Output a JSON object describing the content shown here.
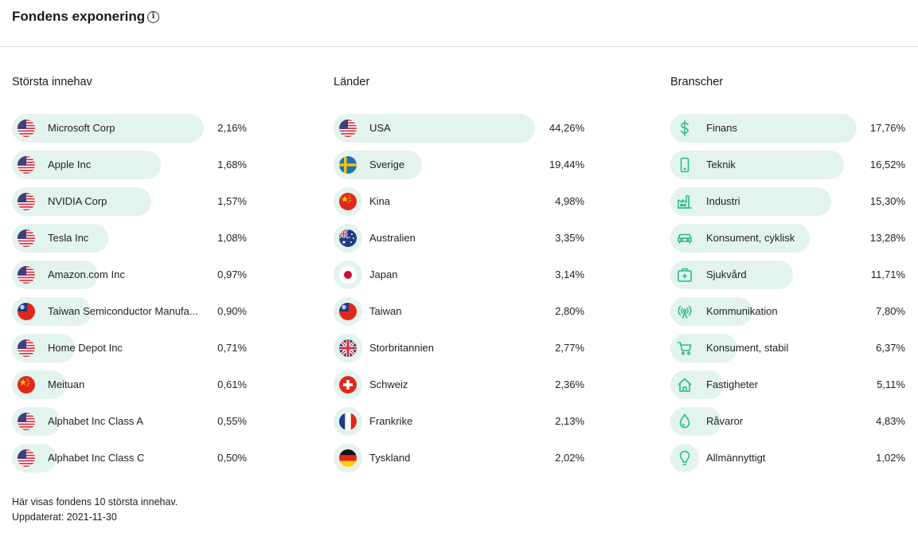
{
  "header": {
    "title": "Fondens exponering"
  },
  "holdings": {
    "title": "Största innehav",
    "items": [
      {
        "label": "Microsoft Corp",
        "value": "2,16%",
        "pct": 2.16,
        "flag": "us"
      },
      {
        "label": "Apple Inc",
        "value": "1,68%",
        "pct": 1.68,
        "flag": "us"
      },
      {
        "label": "NVIDIA Corp",
        "value": "1,57%",
        "pct": 1.57,
        "flag": "us"
      },
      {
        "label": "Tesla Inc",
        "value": "1,08%",
        "pct": 1.08,
        "flag": "us"
      },
      {
        "label": "Amazon.com Inc",
        "value": "0,97%",
        "pct": 0.97,
        "flag": "us"
      },
      {
        "label": "Taiwan Semiconductor Manufa...",
        "value": "0,90%",
        "pct": 0.9,
        "flag": "tw"
      },
      {
        "label": "Home Depot Inc",
        "value": "0,71%",
        "pct": 0.71,
        "flag": "us"
      },
      {
        "label": "Meituan",
        "value": "0,61%",
        "pct": 0.61,
        "flag": "cn"
      },
      {
        "label": "Alphabet Inc Class A",
        "value": "0,55%",
        "pct": 0.55,
        "flag": "us"
      },
      {
        "label": "Alphabet Inc Class C",
        "value": "0,50%",
        "pct": 0.5,
        "flag": "us"
      }
    ]
  },
  "countries": {
    "title": "Länder",
    "items": [
      {
        "label": "USA",
        "value": "44,26%",
        "pct": 44.26,
        "flag": "us"
      },
      {
        "label": "Sverige",
        "value": "19,44%",
        "pct": 19.44,
        "flag": "se"
      },
      {
        "label": "Kina",
        "value": "4,98%",
        "pct": 4.98,
        "flag": "cn"
      },
      {
        "label": "Australien",
        "value": "3,35%",
        "pct": 3.35,
        "flag": "au"
      },
      {
        "label": "Japan",
        "value": "3,14%",
        "pct": 3.14,
        "flag": "jp"
      },
      {
        "label": "Taiwan",
        "value": "2,80%",
        "pct": 2.8,
        "flag": "tw"
      },
      {
        "label": "Storbritannien",
        "value": "2,77%",
        "pct": 2.77,
        "flag": "gb"
      },
      {
        "label": "Schweiz",
        "value": "2,36%",
        "pct": 2.36,
        "flag": "ch"
      },
      {
        "label": "Frankrike",
        "value": "2,13%",
        "pct": 2.13,
        "flag": "fr"
      },
      {
        "label": "Tyskland",
        "value": "2,02%",
        "pct": 2.02,
        "flag": "de"
      }
    ]
  },
  "sectors": {
    "title": "Branscher",
    "items": [
      {
        "label": "Finans",
        "value": "17,76%",
        "pct": 17.76,
        "icon": "dollar-icon"
      },
      {
        "label": "Teknik",
        "value": "16,52%",
        "pct": 16.52,
        "icon": "phone-icon"
      },
      {
        "label": "Industri",
        "value": "15,30%",
        "pct": 15.3,
        "icon": "factory-icon"
      },
      {
        "label": "Konsument, cyklisk",
        "value": "13,28%",
        "pct": 13.28,
        "icon": "car-icon"
      },
      {
        "label": "Sjukvård",
        "value": "11,71%",
        "pct": 11.71,
        "icon": "medkit-icon"
      },
      {
        "label": "Kommunikation",
        "value": "7,80%",
        "pct": 7.8,
        "icon": "broadcast-icon"
      },
      {
        "label": "Konsument, stabil",
        "value": "6,37%",
        "pct": 6.37,
        "icon": "cart-icon"
      },
      {
        "label": "Fastigheter",
        "value": "5,11%",
        "pct": 5.11,
        "icon": "house-icon"
      },
      {
        "label": "Råvaror",
        "value": "4,83%",
        "pct": 4.83,
        "icon": "drop-icon"
      },
      {
        "label": "Allmännyttigt",
        "value": "1,02%",
        "pct": 1.02,
        "icon": "bulb-icon"
      }
    ]
  },
  "footer": {
    "note": "Här visas fondens 10 största innehav.",
    "updated": "Uppdaterat: 2021-11-30"
  },
  "colors": {
    "bar": "#e3f4ee",
    "icon": "#2bb98a"
  }
}
